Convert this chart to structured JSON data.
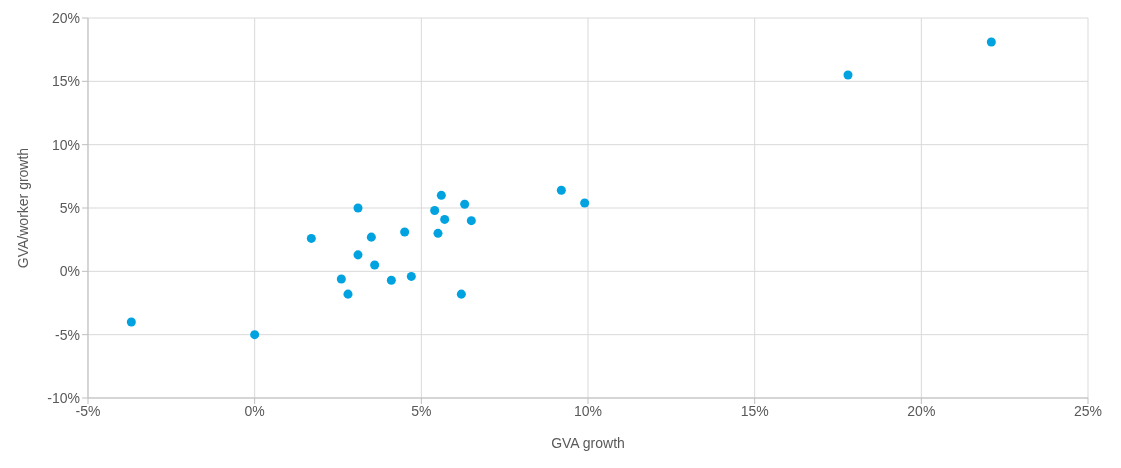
{
  "chart_data": {
    "type": "scatter",
    "xlabel": "GVA growth",
    "ylabel": "GVA/worker growth",
    "x": [
      -3.7,
      0,
      1.7,
      2.6,
      2.8,
      3.1,
      3.1,
      3.5,
      3.6,
      4.1,
      4.5,
      4.7,
      5.4,
      5.5,
      5.6,
      5.7,
      6.2,
      6.3,
      6.5,
      9.2,
      9.9,
      17.8,
      22.1
    ],
    "series": [
      {
        "color": "#00a3e0",
        "values": [
          -4.0,
          -5.0,
          2.6,
          -0.6,
          -1.8,
          5.0,
          1.3,
          2.7,
          0.5,
          -0.7,
          3.1,
          -0.4,
          4.8,
          3.0,
          6.0,
          4.1,
          -1.8,
          5.3,
          4.0,
          6.4,
          5.4,
          15.5,
          18.1
        ]
      }
    ],
    "xlim": [
      -5,
      25
    ],
    "xticks": [
      {
        "value": -5,
        "label": "-5%"
      },
      {
        "value": 0,
        "label": "0%"
      },
      {
        "value": 5,
        "label": "5%"
      },
      {
        "value": 10,
        "label": "10%"
      },
      {
        "value": 15,
        "label": "15%"
      },
      {
        "value": 20,
        "label": "20%"
      },
      {
        "value": 25,
        "label": "25%"
      }
    ],
    "ylim": [
      -10,
      20
    ],
    "yticks": [
      {
        "value": -10,
        "label": "-10%"
      },
      {
        "value": -5,
        "label": "-5%"
      },
      {
        "value": 0,
        "label": "0%"
      },
      {
        "value": 5,
        "label": "5%"
      },
      {
        "value": 10,
        "label": "10%"
      },
      {
        "value": 15,
        "label": "15%"
      },
      {
        "value": 20,
        "label": "20%"
      }
    ],
    "grid": true,
    "marker": "circle",
    "legend": false
  }
}
